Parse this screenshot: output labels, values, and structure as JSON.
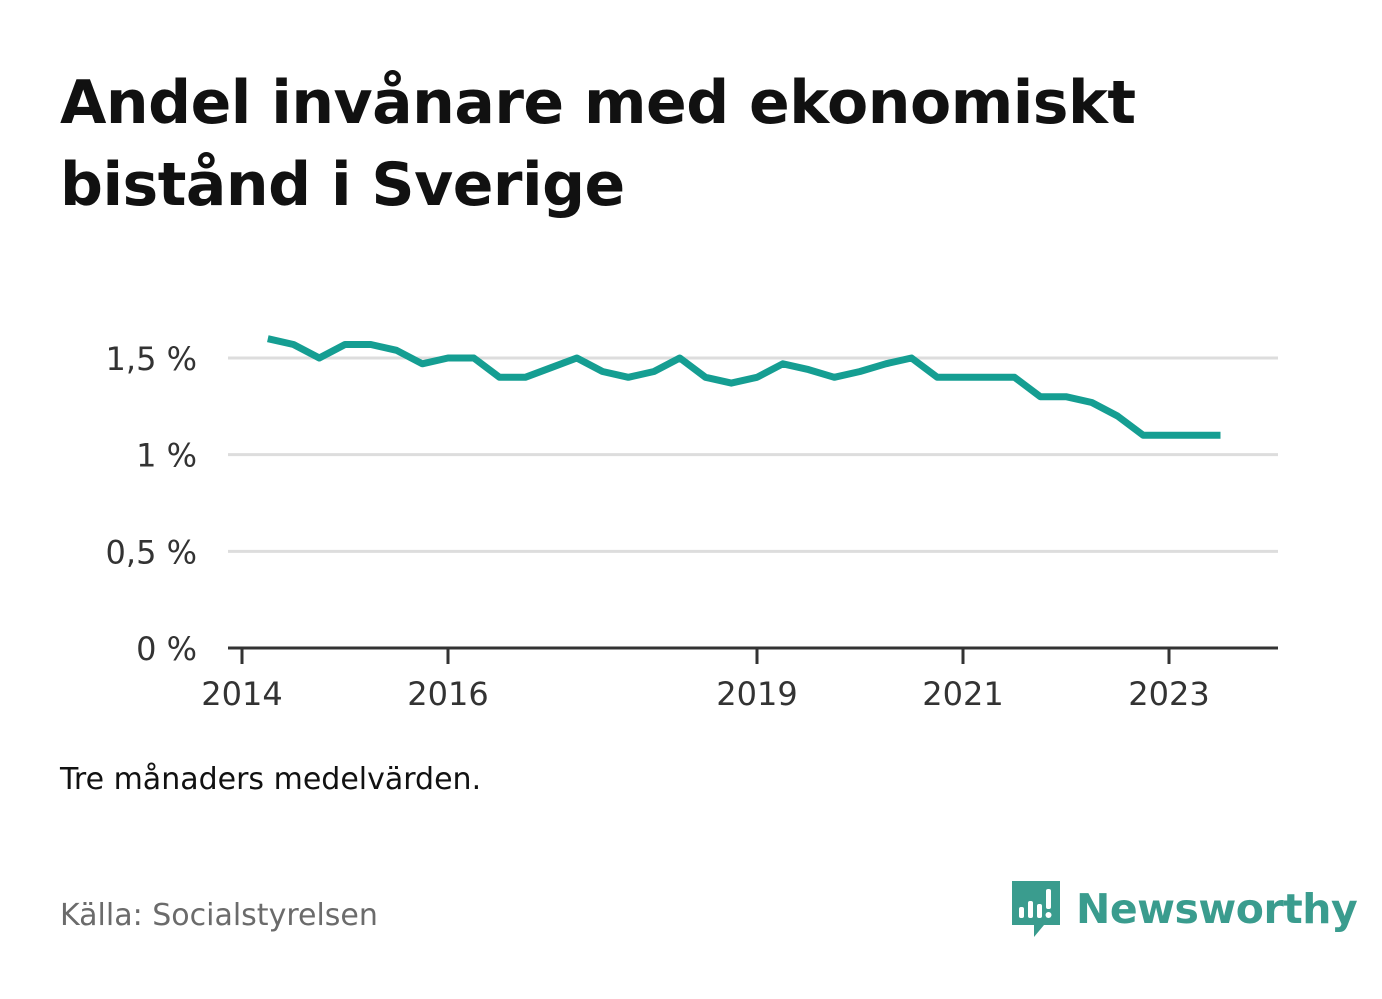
{
  "chart_data": {
    "type": "line",
    "title": "Andel invånare med ekonomiskt bistånd i Sverige",
    "xlabel": "",
    "ylabel": "",
    "x_ticks": [
      "2014",
      "2016",
      "2019",
      "2021",
      "2023"
    ],
    "y_ticks": [
      "0 %",
      "0,5 %",
      "1 %",
      "1,5 %"
    ],
    "ylim": [
      0,
      1.8
    ],
    "grid": true,
    "legend": "none",
    "series_color": "#159e92",
    "series": [
      {
        "x": [
          "2014-04",
          "2014-07",
          "2014-10",
          "2015-01",
          "2015-04",
          "2015-07",
          "2015-10",
          "2016-01",
          "2016-04",
          "2016-07",
          "2016-10",
          "2017-01",
          "2017-04",
          "2017-07",
          "2017-10",
          "2018-01",
          "2018-04",
          "2018-07",
          "2018-10",
          "2019-01",
          "2019-04",
          "2019-07",
          "2019-10",
          "2020-01",
          "2020-04",
          "2020-07",
          "2020-10",
          "2021-01",
          "2021-04",
          "2021-07",
          "2021-10",
          "2022-01",
          "2022-04",
          "2022-07",
          "2022-10",
          "2023-01",
          "2023-04",
          "2023-07"
        ],
        "values": [
          1.6,
          1.57,
          1.5,
          1.57,
          1.57,
          1.54,
          1.47,
          1.5,
          1.5,
          1.4,
          1.4,
          1.45,
          1.5,
          1.43,
          1.4,
          1.43,
          1.5,
          1.4,
          1.37,
          1.4,
          1.47,
          1.44,
          1.4,
          1.43,
          1.47,
          1.5,
          1.4,
          1.4,
          1.4,
          1.4,
          1.3,
          1.3,
          1.27,
          1.2,
          1.1,
          1.1,
          1.1,
          1.1
        ]
      }
    ]
  },
  "note": "Tre månaders medelvärden.",
  "source": "Källa: Socialstyrelsen",
  "brand": {
    "name": "Newsworthy",
    "icon": "newsworthy-logo-icon",
    "color": "#3a9c8e"
  }
}
